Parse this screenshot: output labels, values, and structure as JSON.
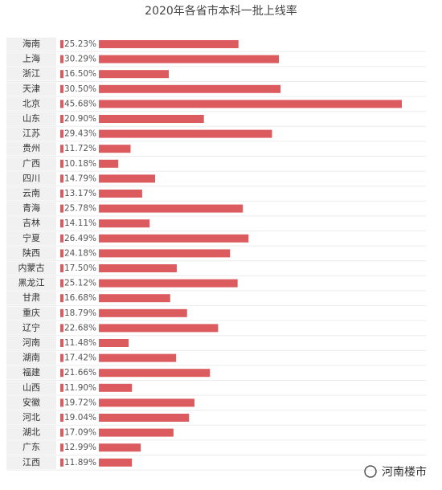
{
  "chart_data": {
    "type": "bar",
    "orientation": "horizontal",
    "title": "2020年各省市本科一批上线率",
    "categories": [
      "海南",
      "上海",
      "浙江",
      "天津",
      "北京",
      "山东",
      "江苏",
      "贵州",
      "广西",
      "四川",
      "云南",
      "青海",
      "吉林",
      "宁夏",
      "陕西",
      "内蒙古",
      "黑龙江",
      "甘肃",
      "重庆",
      "辽宁",
      "河南",
      "湖南",
      "福建",
      "山西",
      "安徽",
      "河北",
      "湖北",
      "广东",
      "江西"
    ],
    "values": [
      25.23,
      30.29,
      16.5,
      30.5,
      45.68,
      20.9,
      29.43,
      11.72,
      10.18,
      14.79,
      13.17,
      25.78,
      14.11,
      26.49,
      24.18,
      17.5,
      25.12,
      16.68,
      18.79,
      22.68,
      11.48,
      17.42,
      21.66,
      11.9,
      19.72,
      19.04,
      17.09,
      12.99,
      11.89
    ],
    "value_labels": [
      "25.23%",
      "30.29%",
      "16.50%",
      "30.50%",
      "45.68%",
      "20.90%",
      "29.43%",
      "11.72%",
      "10.18%",
      "14.79%",
      "13.17%",
      "25.78%",
      "14.11%",
      "26.49%",
      "24.18%",
      "17.50%",
      "25.12%",
      "16.68%",
      "18.79%",
      "22.68%",
      "11.48%",
      "17.42%",
      "21.66%",
      "11.90%",
      "19.72%",
      "19.04%",
      "17.09%",
      "12.99%",
      "11.89%"
    ],
    "color": "#dc5b5e"
  },
  "watermark": "河南楼市"
}
